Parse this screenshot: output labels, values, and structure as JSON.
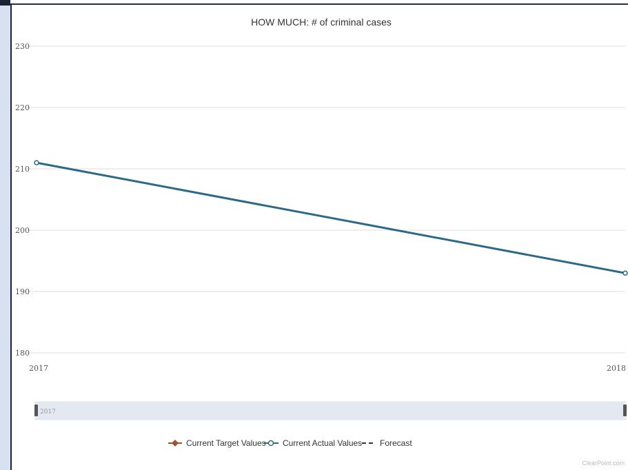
{
  "chart_data": {
    "type": "line",
    "title": "HOW MUCH: # of criminal cases",
    "xlabel": "",
    "ylabel": "",
    "x": [
      "2017",
      "2018"
    ],
    "ylim": [
      180,
      230
    ],
    "y_ticks": [
      180,
      190,
      200,
      210,
      220,
      230
    ],
    "grid": true,
    "legend_position": "bottom",
    "series": [
      {
        "name": "Current Actual Values",
        "values": [
          211,
          193
        ],
        "color": "#2b6a87"
      }
    ],
    "legend": [
      {
        "label": "Current Target Values",
        "color": "#a0522d",
        "marker": "diamond",
        "style": "solid"
      },
      {
        "label": "Current Actual Values",
        "color": "#2b6a87",
        "marker": "circle",
        "style": "solid"
      },
      {
        "label": "Forecast",
        "color": "#333333",
        "marker": "none",
        "style": "dashed"
      }
    ],
    "navigator_label": "2017",
    "credit": "ClearPoint.com"
  }
}
